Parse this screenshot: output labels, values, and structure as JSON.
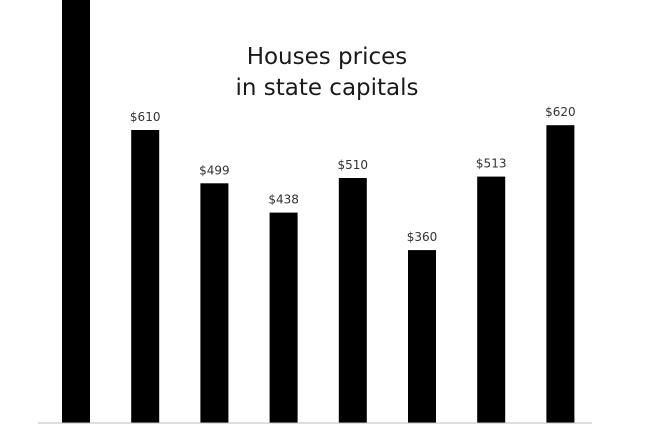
{
  "chart_data": {
    "type": "bar",
    "title_lines": [
      "Houses prices",
      "in state capitals"
    ],
    "categories": [
      "",
      "",
      "",
      "",
      "",
      "",
      "",
      ""
    ],
    "values": [
      900,
      610,
      499,
      438,
      510,
      360,
      513,
      620
    ],
    "data_labels": [
      "",
      "$610",
      "$499",
      "$438",
      "$510",
      "$360",
      "$513",
      "$620"
    ],
    "ylim": [
      0,
      900
    ],
    "bar_color": "#000000",
    "grid": false,
    "legend": "none"
  }
}
